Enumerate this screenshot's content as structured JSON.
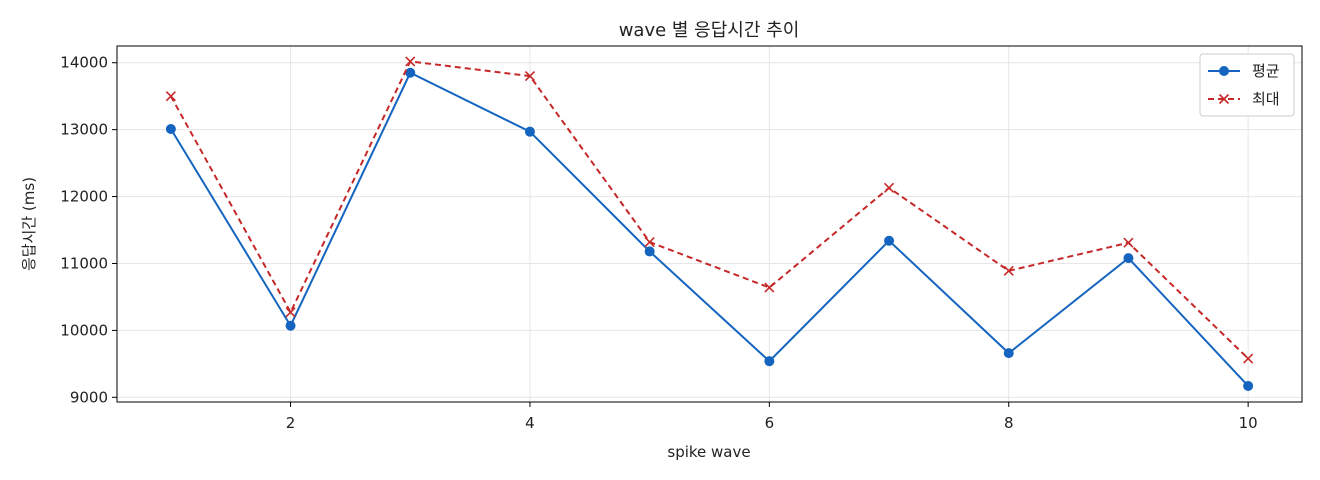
{
  "chart_data": {
    "type": "line",
    "title": "wave 별 응답시간 추이",
    "xlabel": "spike wave",
    "ylabel": "응답시간 (ms)",
    "x": [
      1,
      2,
      3,
      4,
      5,
      6,
      7,
      8,
      9,
      10
    ],
    "xlim": [
      0.55,
      10.45
    ],
    "ylim": [
      8930,
      14250
    ],
    "xticks": [
      2,
      4,
      6,
      8,
      10
    ],
    "yticks": [
      9000,
      10000,
      11000,
      12000,
      13000,
      14000
    ],
    "grid": true,
    "legend_position": "top-right",
    "series": [
      {
        "name": "평균",
        "color": "#1565c0",
        "line_style": "solid",
        "marker": "circle",
        "values": [
          13010,
          10070,
          13850,
          12970,
          11180,
          9540,
          11340,
          9660,
          11080,
          9170
        ]
      },
      {
        "name": "최대",
        "color": "#c62828",
        "line_style": "dashed",
        "marker": "x",
        "values": [
          13500,
          10270,
          14020,
          13800,
          11320,
          10640,
          12130,
          10890,
          11310,
          9580
        ]
      }
    ]
  }
}
